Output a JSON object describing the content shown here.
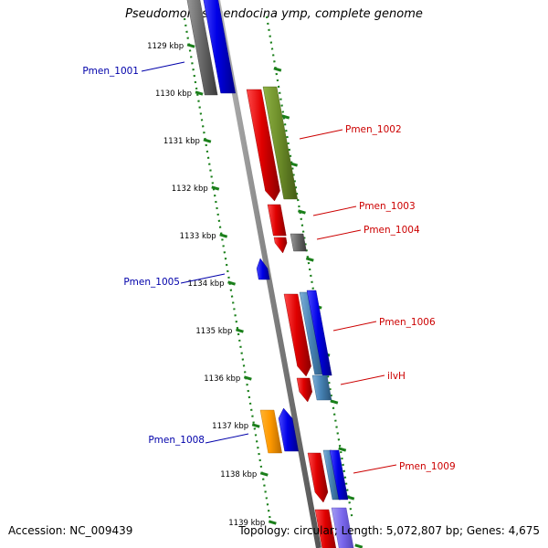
{
  "title": "Pseudomonas mendocina ymp, complete genome",
  "accession": "Accession: NC_009439",
  "summary": "Topology: circular; Length: 5,072,807 bp; Genes: 4,675",
  "colors": {
    "backbone": "#8a8a8a",
    "tick": "#1a7f1a",
    "label_red": "#cc0000",
    "label_blue": "#0000aa"
  },
  "ticks": [
    "1129 kbp",
    "1130 kbp",
    "1131 kbp",
    "1132 kbp",
    "1133 kbp",
    "1134 kbp",
    "1135 kbp",
    "1136 kbp",
    "1137 kbp",
    "1138 kbp",
    "1139 kbp"
  ],
  "labels": [
    {
      "text": "Pmen_1001",
      "color": "blue"
    },
    {
      "text": "Pmen_1002",
      "color": "red"
    },
    {
      "text": "Pmen_1003",
      "color": "red"
    },
    {
      "text": "Pmen_1004",
      "color": "red"
    },
    {
      "text": "Pmen_1005",
      "color": "blue"
    },
    {
      "text": "Pmen_1006",
      "color": "red"
    },
    {
      "text": "ilvH",
      "color": "red"
    },
    {
      "text": "Pmen_1008",
      "color": "blue"
    },
    {
      "text": "Pmen_1009",
      "color": "red"
    }
  ]
}
